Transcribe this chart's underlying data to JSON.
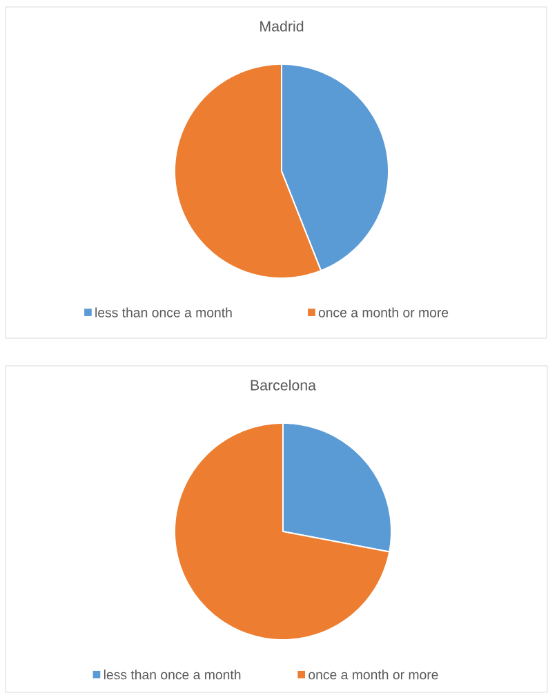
{
  "chart_data": [
    {
      "type": "pie",
      "title": "Madrid",
      "categories": [
        "less than once a month",
        "once a month or more"
      ],
      "values": [
        44,
        56
      ],
      "colors": [
        "#5b9bd5",
        "#ed7d31"
      ],
      "legend": "bottom"
    },
    {
      "type": "pie",
      "title": "Barcelona",
      "categories": [
        "less than once a month",
        "once a month or more"
      ],
      "values": [
        28,
        72
      ],
      "colors": [
        "#5b9bd5",
        "#ed7d31"
      ],
      "legend": "bottom"
    }
  ]
}
